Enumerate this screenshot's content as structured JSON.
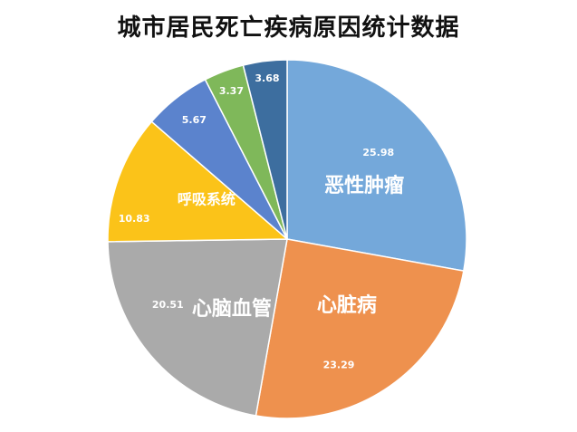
{
  "chart_data": {
    "type": "pie",
    "title": "城市居民死亡疾病原因统计数据",
    "slices": [
      {
        "category": "恶性肿瘤",
        "value": 25.98,
        "color": "#74A8DA"
      },
      {
        "category": "心脏病",
        "value": 23.29,
        "color": "#EE914E"
      },
      {
        "category": "心脑血管",
        "value": 20.51,
        "color": "#AAAAAA"
      },
      {
        "category": "呼吸系统",
        "value": 10.83,
        "color": "#FBC319"
      },
      {
        "category": "",
        "value": 5.67,
        "color": "#5B83CD"
      },
      {
        "category": "",
        "value": 3.37,
        "color": "#7FB85A"
      },
      {
        "category": "",
        "value": 3.68,
        "color": "#3D6E9F"
      }
    ],
    "value_labels": [
      "25.98",
      "23.29",
      "20.51",
      "10.83",
      "5.67",
      "3.37",
      "3.68"
    ],
    "legend": "none"
  }
}
